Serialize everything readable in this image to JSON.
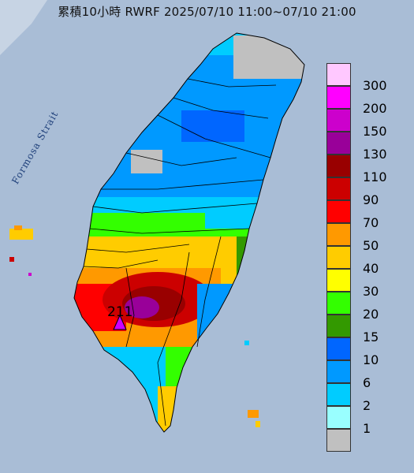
{
  "title": "累積10小時 RWRF 2025/07/10 11:00~07/10 21:00",
  "sea_label": "Formosa Strait",
  "peak": {
    "value": "211"
  },
  "legend": [
    {
      "label": "300",
      "color": "#ffc8ff"
    },
    {
      "label": "200",
      "color": "#ff00ff"
    },
    {
      "label": "150",
      "color": "#cc00cc"
    },
    {
      "label": "130",
      "color": "#990099"
    },
    {
      "label": "110",
      "color": "#990000"
    },
    {
      "label": "90",
      "color": "#cc0000"
    },
    {
      "label": "70",
      "color": "#ff0000"
    },
    {
      "label": "50",
      "color": "#ff9900"
    },
    {
      "label": "40",
      "color": "#ffcc00"
    },
    {
      "label": "30",
      "color": "#ffff00"
    },
    {
      "label": "20",
      "color": "#33ff00"
    },
    {
      "label": "15",
      "color": "#339900"
    },
    {
      "label": "10",
      "color": "#0066ff"
    },
    {
      "label": "6",
      "color": "#0099ff"
    },
    {
      "label": "2",
      "color": "#00ccff"
    },
    {
      "label": "1",
      "color": "#99ffff"
    },
    {
      "label": "",
      "color": "#c0c0c0"
    }
  ]
}
